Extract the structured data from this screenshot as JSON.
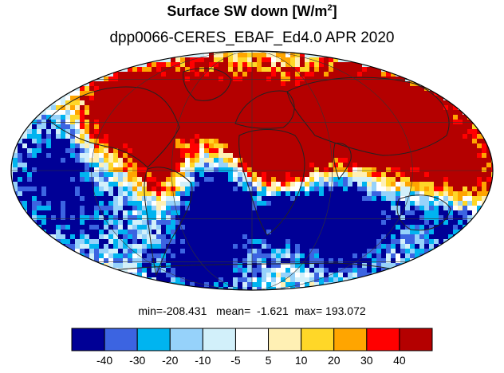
{
  "title": {
    "text": "Surface SW down [W/m",
    "sup": "2",
    "close": "]"
  },
  "subtitle": "dpp0066-CERES_EBAF_Ed4.0  APR 2020",
  "stats": {
    "min_label": "min=",
    "min": "-208.431",
    "mean_label": "mean=",
    "mean": "-1.621",
    "max_label": "max=",
    "max": "193.072"
  },
  "colorbar": {
    "levels": [
      "-40",
      "-30",
      "-20",
      "-10",
      "-5",
      "5",
      "10",
      "20",
      "30",
      "40"
    ],
    "colors": [
      "#000096",
      "#3c64e1",
      "#00b4f0",
      "#96d2fa",
      "#d2f0fa",
      "#ffffff",
      "#fff0b4",
      "#ffd728",
      "#ffa500",
      "#ff0000",
      "#b40000"
    ]
  },
  "map": {
    "projection": "mollweide",
    "field": "Surface SW down difference, APR 2020",
    "color_scale": [
      "#000096",
      "#3c64e1",
      "#00b4f0",
      "#96d2fa",
      "#d2f0fa",
      "#ffffff",
      "#fff0b4",
      "#ffd728",
      "#ffa500",
      "#ff0000",
      "#b40000"
    ]
  }
}
